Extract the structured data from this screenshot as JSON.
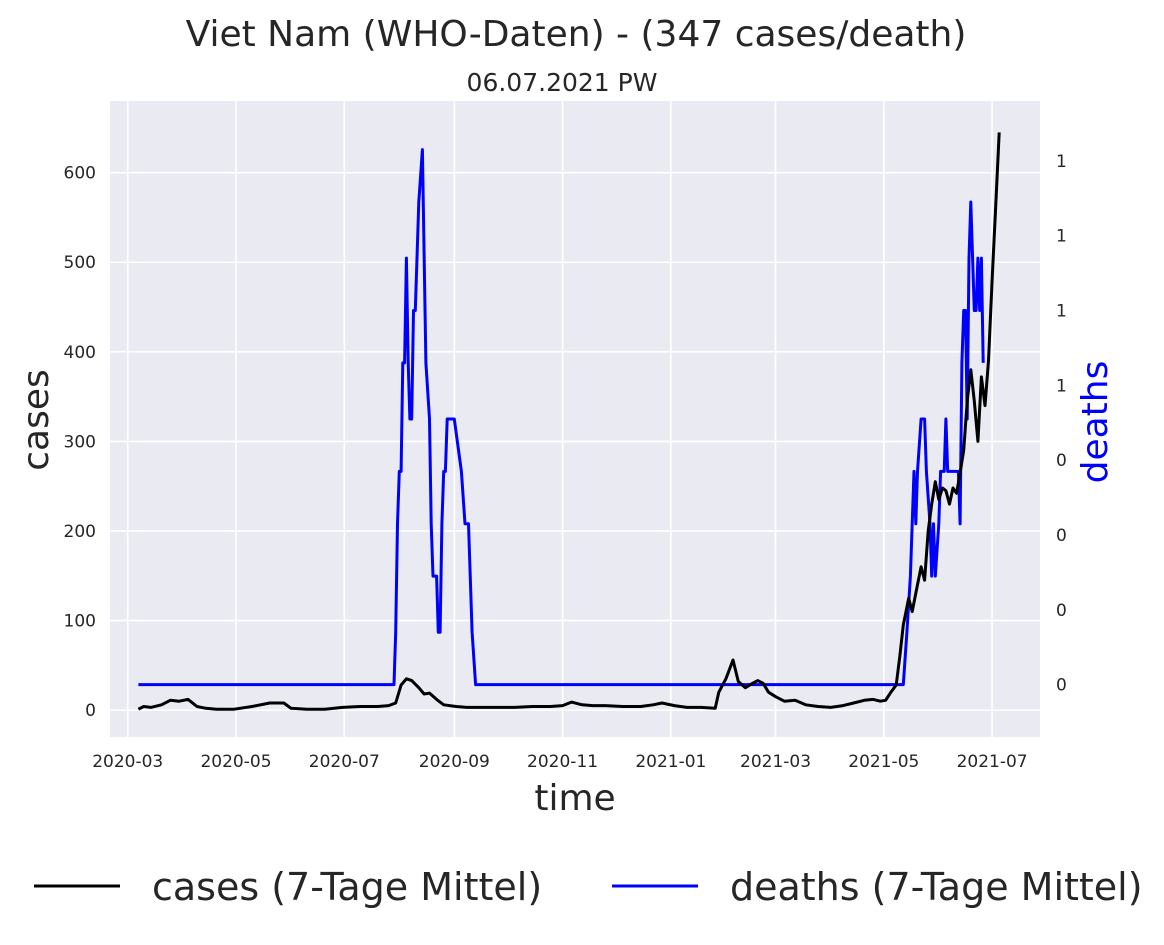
{
  "chart_data": {
    "type": "line",
    "title": "Viet Nam (WHO-Daten) - (347 cases/death)",
    "subtitle": "06.07.2021 PW",
    "xlabel": "time",
    "ylabel": "cases",
    "ylabel_right": "deaths",
    "x_ticks": [
      "2020-03",
      "2020-05",
      "2020-07",
      "2020-09",
      "2020-11",
      "2021-01",
      "2021-03",
      "2021-05",
      "2021-07"
    ],
    "xlim": [
      "2020-02-20",
      "2021-07-28"
    ],
    "ylim": [
      -30,
      680
    ],
    "y_ticks": [
      0,
      100,
      200,
      300,
      400,
      500,
      600
    ],
    "y2lim": [
      -0.14,
      1.56
    ],
    "y2_ticks": [
      0,
      0.2,
      0.4,
      0.6,
      0.8,
      1.0,
      1.2,
      1.4
    ],
    "y2_tick_labels": [
      "0",
      "0",
      "0",
      "0",
      "1",
      "1",
      "1",
      "1"
    ],
    "grid": true,
    "legend_position": "bottom",
    "series": [
      {
        "name": "cases (7-Tage Mittel)",
        "color": "#000000",
        "axis": "left",
        "points": [
          [
            "2020-03-07",
            1
          ],
          [
            "2020-03-10",
            4
          ],
          [
            "2020-03-14",
            3
          ],
          [
            "2020-03-20",
            6
          ],
          [
            "2020-03-25",
            11
          ],
          [
            "2020-03-30",
            10
          ],
          [
            "2020-04-04",
            12
          ],
          [
            "2020-04-09",
            4
          ],
          [
            "2020-04-14",
            2
          ],
          [
            "2020-04-20",
            1
          ],
          [
            "2020-04-30",
            1
          ],
          [
            "2020-05-10",
            4
          ],
          [
            "2020-05-20",
            8
          ],
          [
            "2020-05-28",
            8
          ],
          [
            "2020-06-01",
            2
          ],
          [
            "2020-06-10",
            1
          ],
          [
            "2020-06-20",
            1
          ],
          [
            "2020-06-30",
            3
          ],
          [
            "2020-07-10",
            4
          ],
          [
            "2020-07-20",
            4
          ],
          [
            "2020-07-26",
            5
          ],
          [
            "2020-07-30",
            8
          ],
          [
            "2020-08-02",
            28
          ],
          [
            "2020-08-05",
            35
          ],
          [
            "2020-08-08",
            33
          ],
          [
            "2020-08-12",
            25
          ],
          [
            "2020-08-15",
            18
          ],
          [
            "2020-08-18",
            19
          ],
          [
            "2020-08-22",
            12
          ],
          [
            "2020-08-26",
            6
          ],
          [
            "2020-09-02",
            4
          ],
          [
            "2020-09-08",
            3
          ],
          [
            "2020-09-15",
            3
          ],
          [
            "2020-09-25",
            3
          ],
          [
            "2020-10-05",
            3
          ],
          [
            "2020-10-15",
            4
          ],
          [
            "2020-10-25",
            4
          ],
          [
            "2020-11-01",
            5
          ],
          [
            "2020-11-06",
            9
          ],
          [
            "2020-11-12",
            6
          ],
          [
            "2020-11-18",
            5
          ],
          [
            "2020-11-25",
            5
          ],
          [
            "2020-12-05",
            4
          ],
          [
            "2020-12-15",
            4
          ],
          [
            "2020-12-22",
            6
          ],
          [
            "2020-12-27",
            8
          ],
          [
            "2021-01-03",
            5
          ],
          [
            "2021-01-10",
            3
          ],
          [
            "2021-01-18",
            3
          ],
          [
            "2021-01-26",
            2
          ],
          [
            "2021-01-28",
            20
          ],
          [
            "2021-02-01",
            35
          ],
          [
            "2021-02-05",
            56
          ],
          [
            "2021-02-08",
            32
          ],
          [
            "2021-02-12",
            25
          ],
          [
            "2021-02-16",
            30
          ],
          [
            "2021-02-19",
            33
          ],
          [
            "2021-02-22",
            30
          ],
          [
            "2021-02-25",
            20
          ],
          [
            "2021-03-01",
            15
          ],
          [
            "2021-03-06",
            10
          ],
          [
            "2021-03-12",
            11
          ],
          [
            "2021-03-18",
            6
          ],
          [
            "2021-03-25",
            4
          ],
          [
            "2021-04-01",
            3
          ],
          [
            "2021-04-08",
            5
          ],
          [
            "2021-04-14",
            8
          ],
          [
            "2021-04-20",
            11
          ],
          [
            "2021-04-25",
            12
          ],
          [
            "2021-04-29",
            10
          ],
          [
            "2021-05-02",
            11
          ],
          [
            "2021-05-05",
            20
          ],
          [
            "2021-05-08",
            28
          ],
          [
            "2021-05-10",
            60
          ],
          [
            "2021-05-12",
            95
          ],
          [
            "2021-05-15",
            125
          ],
          [
            "2021-05-17",
            110
          ],
          [
            "2021-05-20",
            140
          ],
          [
            "2021-05-22",
            160
          ],
          [
            "2021-05-24",
            145
          ],
          [
            "2021-05-26",
            200
          ],
          [
            "2021-05-28",
            230
          ],
          [
            "2021-05-30",
            255
          ],
          [
            "2021-06-01",
            235
          ],
          [
            "2021-06-03",
            248
          ],
          [
            "2021-06-05",
            245
          ],
          [
            "2021-06-07",
            230
          ],
          [
            "2021-06-09",
            248
          ],
          [
            "2021-06-11",
            242
          ],
          [
            "2021-06-13",
            265
          ],
          [
            "2021-06-15",
            290
          ],
          [
            "2021-06-17",
            345
          ],
          [
            "2021-06-19",
            380
          ],
          [
            "2021-06-21",
            345
          ],
          [
            "2021-06-23",
            300
          ],
          [
            "2021-06-25",
            372
          ],
          [
            "2021-06-27",
            340
          ],
          [
            "2021-06-29",
            390
          ],
          [
            "2021-07-01",
            480
          ],
          [
            "2021-07-03",
            560
          ],
          [
            "2021-07-05",
            645
          ]
        ]
      },
      {
        "name": "deaths (7-Tage Mittel)",
        "color": "#0000ff",
        "axis": "right",
        "points": [
          [
            "2020-03-07",
            0
          ],
          [
            "2020-07-29",
            0
          ],
          [
            "2020-07-30",
            0.14
          ],
          [
            "2020-07-31",
            0.43
          ],
          [
            "2020-08-01",
            0.57
          ],
          [
            "2020-08-02",
            0.57
          ],
          [
            "2020-08-03",
            0.86
          ],
          [
            "2020-08-04",
            0.86
          ],
          [
            "2020-08-05",
            1.14
          ],
          [
            "2020-08-06",
            0.86
          ],
          [
            "2020-08-07",
            0.71
          ],
          [
            "2020-08-08",
            0.71
          ],
          [
            "2020-08-09",
            1.0
          ],
          [
            "2020-08-10",
            1.0
          ],
          [
            "2020-08-11",
            1.14
          ],
          [
            "2020-08-12",
            1.29
          ],
          [
            "2020-08-14",
            1.43
          ],
          [
            "2020-08-16",
            0.86
          ],
          [
            "2020-08-18",
            0.71
          ],
          [
            "2020-08-19",
            0.43
          ],
          [
            "2020-08-20",
            0.29
          ],
          [
            "2020-08-21",
            0.29
          ],
          [
            "2020-08-22",
            0.29
          ],
          [
            "2020-08-23",
            0.14
          ],
          [
            "2020-08-24",
            0.14
          ],
          [
            "2020-08-25",
            0.43
          ],
          [
            "2020-08-26",
            0.57
          ],
          [
            "2020-08-27",
            0.57
          ],
          [
            "2020-08-28",
            0.71
          ],
          [
            "2020-08-30",
            0.71
          ],
          [
            "2020-08-31",
            0.71
          ],
          [
            "2020-09-01",
            0.71
          ],
          [
            "2020-09-05",
            0.57
          ],
          [
            "2020-09-07",
            0.43
          ],
          [
            "2020-09-08",
            0.43
          ],
          [
            "2020-09-09",
            0.43
          ],
          [
            "2020-09-11",
            0.14
          ],
          [
            "2020-09-13",
            0
          ],
          [
            "2021-05-12",
            0
          ],
          [
            "2021-05-14",
            0.14
          ],
          [
            "2021-05-16",
            0.29
          ],
          [
            "2021-05-18",
            0.57
          ],
          [
            "2021-05-19",
            0.43
          ],
          [
            "2021-05-20",
            0.57
          ],
          [
            "2021-05-22",
            0.71
          ],
          [
            "2021-05-24",
            0.71
          ],
          [
            "2021-05-25",
            0.57
          ],
          [
            "2021-05-27",
            0.43
          ],
          [
            "2021-05-28",
            0.29
          ],
          [
            "2021-05-29",
            0.43
          ],
          [
            "2021-05-30",
            0.29
          ],
          [
            "2021-06-01",
            0.43
          ],
          [
            "2021-06-02",
            0.57
          ],
          [
            "2021-06-04",
            0.57
          ],
          [
            "2021-06-05",
            0.71
          ],
          [
            "2021-06-06",
            0.57
          ],
          [
            "2021-06-07",
            0.57
          ],
          [
            "2021-06-08",
            0.57
          ],
          [
            "2021-06-10",
            0.57
          ],
          [
            "2021-06-11",
            0.57
          ],
          [
            "2021-06-12",
            0.57
          ],
          [
            "2021-06-13",
            0.43
          ],
          [
            "2021-06-14",
            0.86
          ],
          [
            "2021-06-15",
            1.0
          ],
          [
            "2021-06-16",
            1.0
          ],
          [
            "2021-06-17",
            0.71
          ],
          [
            "2021-06-18",
            1.14
          ],
          [
            "2021-06-19",
            1.29
          ],
          [
            "2021-06-20",
            1.14
          ],
          [
            "2021-06-21",
            1.0
          ],
          [
            "2021-06-22",
            1.0
          ],
          [
            "2021-06-23",
            1.14
          ],
          [
            "2021-06-24",
            1.0
          ],
          [
            "2021-06-25",
            1.14
          ],
          [
            "2021-06-26",
            0.86
          ]
        ]
      }
    ]
  }
}
